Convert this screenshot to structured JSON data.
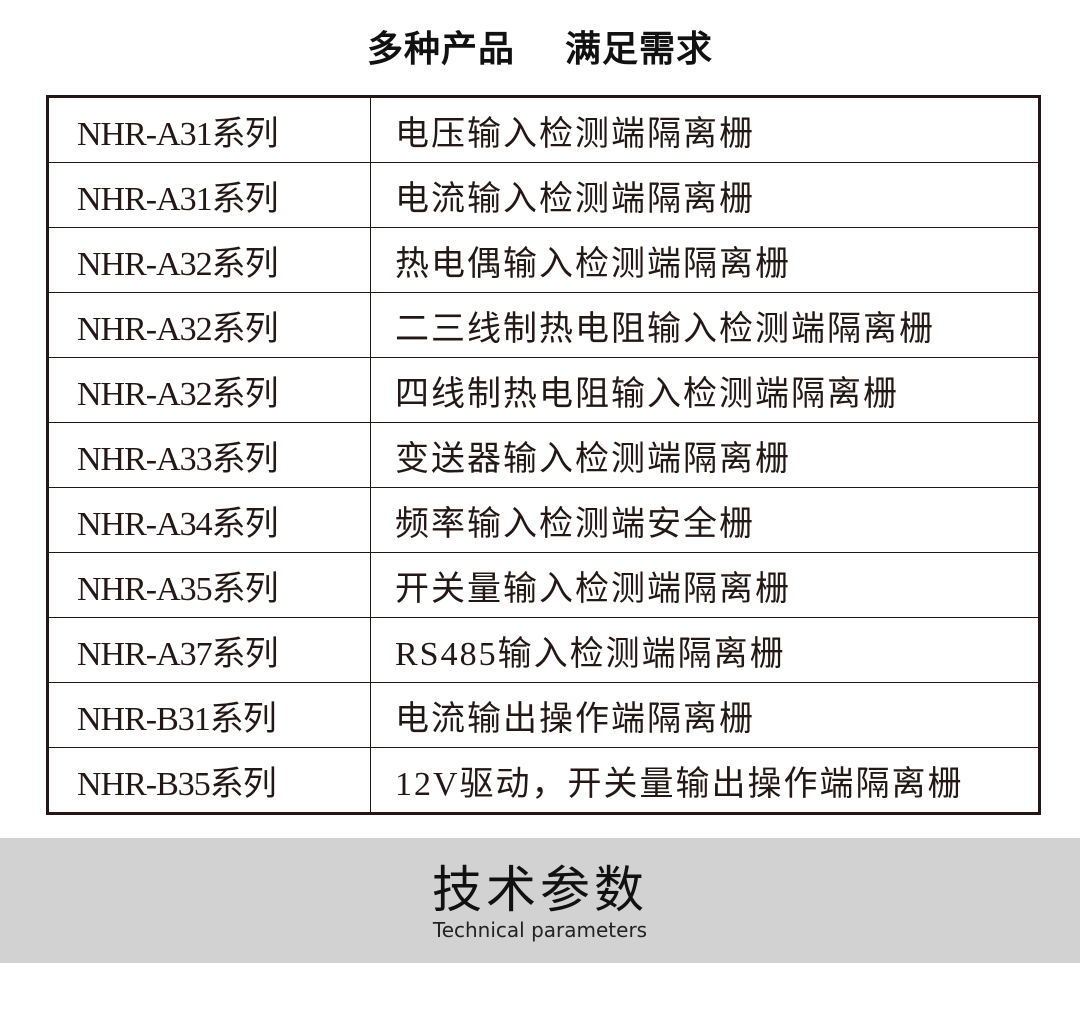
{
  "header": {
    "title_part1": "多种产品",
    "title_part2": "满足需求"
  },
  "table": {
    "rows": [
      {
        "series": "NHR-A31系列",
        "description": "电压输入检测端隔离栅"
      },
      {
        "series": "NHR-A31系列",
        "description": "电流输入检测端隔离栅"
      },
      {
        "series": "NHR-A32系列",
        "description": "热电偶输入检测端隔离栅"
      },
      {
        "series": "NHR-A32系列",
        "description": "二三线制热电阻输入检测端隔离栅"
      },
      {
        "series": "NHR-A32系列",
        "description": "四线制热电阻输入检测端隔离栅"
      },
      {
        "series": "NHR-A33系列",
        "description": "变送器输入检测端隔离栅"
      },
      {
        "series": "NHR-A34系列",
        "description": "频率输入检测端安全栅"
      },
      {
        "series": "NHR-A35系列",
        "description": "开关量输入检测端隔离栅"
      },
      {
        "series": "NHR-A37系列",
        "description": "RS485输入检测端隔离栅"
      },
      {
        "series": "NHR-B31系列",
        "description": "电流输出操作端隔离栅"
      },
      {
        "series": "NHR-B35系列",
        "description": "12V驱动，开关量输出操作端隔离栅"
      }
    ]
  },
  "section": {
    "title": "技术参数",
    "subtitle": "Technical parameters",
    "background": "#d3d2d2"
  }
}
